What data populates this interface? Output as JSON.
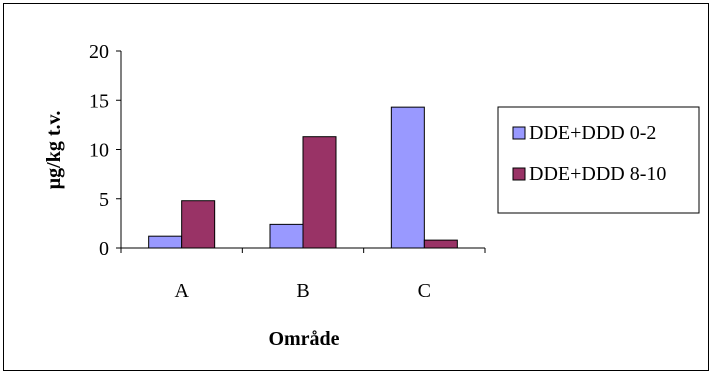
{
  "chart_data": {
    "type": "bar",
    "categories": [
      "A",
      "B",
      "C"
    ],
    "series": [
      {
        "name": "DDE+DDD 0-2",
        "values": [
          1.2,
          2.4,
          14.3
        ],
        "color": "#9999FF"
      },
      {
        "name": "DDE+DDD 8-10",
        "values": [
          4.8,
          11.3,
          0.8
        ],
        "color": "#993366"
      }
    ],
    "xlabel": "Område",
    "ylabel": "µg/kg t.v.",
    "ylim": [
      0,
      20
    ],
    "yticks": [
      0,
      5,
      10,
      15,
      20
    ],
    "grid": false,
    "legend_position": "right"
  }
}
